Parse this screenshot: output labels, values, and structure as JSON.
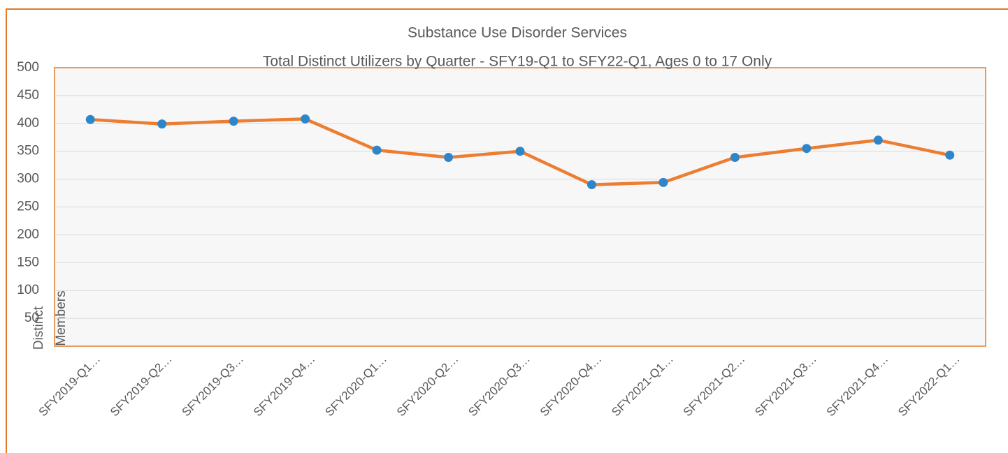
{
  "chart_data": {
    "type": "line",
    "title": "Substance Use Disorder Services",
    "subtitle": "Total Distinct Utilizers by Quarter - SFY19-Q1 to SFY22-Q1, Ages 0 to 17 Only",
    "ylabel": [
      "Distinct",
      "Members"
    ],
    "categories": [
      "SFY2019-Q1…",
      "SFY2019-Q2…",
      "SFY2019-Q3…",
      "SFY2019-Q4…",
      "SFY2020-Q1…",
      "SFY2020-Q2…",
      "SFY2020-Q3…",
      "SFY2020-Q4…",
      "SFY2021-Q1…",
      "SFY2021-Q2…",
      "SFY2021-Q3…",
      "SFY2021-Q4…",
      "SFY2022-Q1…"
    ],
    "series": [
      {
        "color": "#ed7d31",
        "marker_color": "#2e86c8",
        "values": [
          407,
          399,
          404,
          408,
          352,
          339,
          350,
          290,
          294,
          339,
          355,
          370,
          343
        ]
      }
    ],
    "ylim": [
      0,
      500
    ],
    "yticks": [
      50,
      100,
      150,
      200,
      250,
      300,
      350,
      400,
      450,
      500
    ],
    "grid": true
  }
}
